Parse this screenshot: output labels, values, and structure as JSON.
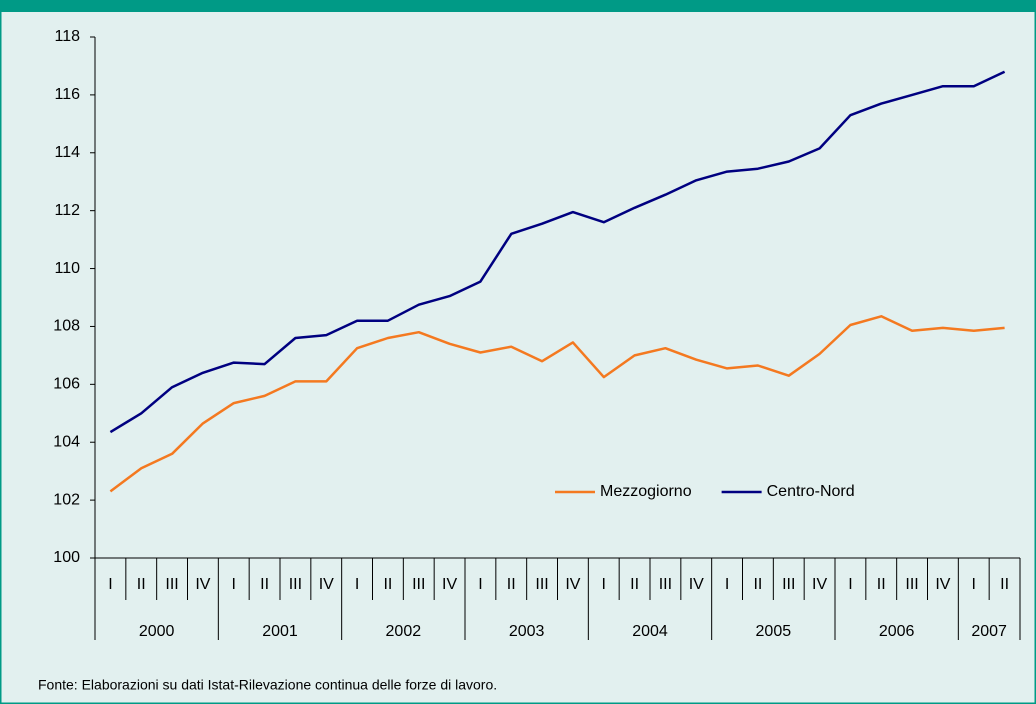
{
  "chart_data": {
    "type": "line",
    "source": "Fonte: Elaborazioni su dati Istat-Rilevazione continua delle forze di lavoro.",
    "categories": [
      "I",
      "II",
      "III",
      "IV",
      "I",
      "II",
      "III",
      "IV",
      "I",
      "II",
      "III",
      "IV",
      "I",
      "II",
      "III",
      "IV",
      "I",
      "II",
      "III",
      "IV",
      "I",
      "II",
      "III",
      "IV",
      "I",
      "II",
      "III",
      "IV",
      "I",
      "II"
    ],
    "groups": [
      "2000",
      "2001",
      "2002",
      "2003",
      "2004",
      "2005",
      "2006",
      "2007"
    ],
    "ylim": [
      100,
      118
    ],
    "yticks": [
      100,
      102,
      104,
      106,
      108,
      110,
      112,
      114,
      116,
      118
    ],
    "series": [
      {
        "name": "Mezzogiorno",
        "color": "#f47920",
        "values": [
          102.3,
          103.1,
          103.6,
          104.65,
          105.35,
          105.6,
          106.1,
          106.1,
          107.25,
          107.6,
          107.8,
          107.4,
          107.1,
          107.3,
          106.8,
          107.45,
          106.25,
          107.0,
          107.25,
          106.85,
          106.55,
          106.65,
          106.3,
          107.05,
          108.05,
          108.35,
          107.85,
          107.95,
          107.85,
          107.95
        ]
      },
      {
        "name": "Centro-Nord",
        "color": "#000080",
        "values": [
          104.35,
          105.0,
          105.9,
          106.4,
          106.75,
          106.7,
          107.6,
          107.7,
          108.2,
          108.2,
          108.75,
          109.05,
          109.55,
          111.2,
          111.55,
          111.95,
          111.6,
          112.1,
          112.55,
          113.05,
          113.35,
          113.45,
          113.7,
          114.15,
          115.3,
          115.7,
          116.0,
          116.3,
          116.3,
          116.8
        ]
      }
    ]
  }
}
